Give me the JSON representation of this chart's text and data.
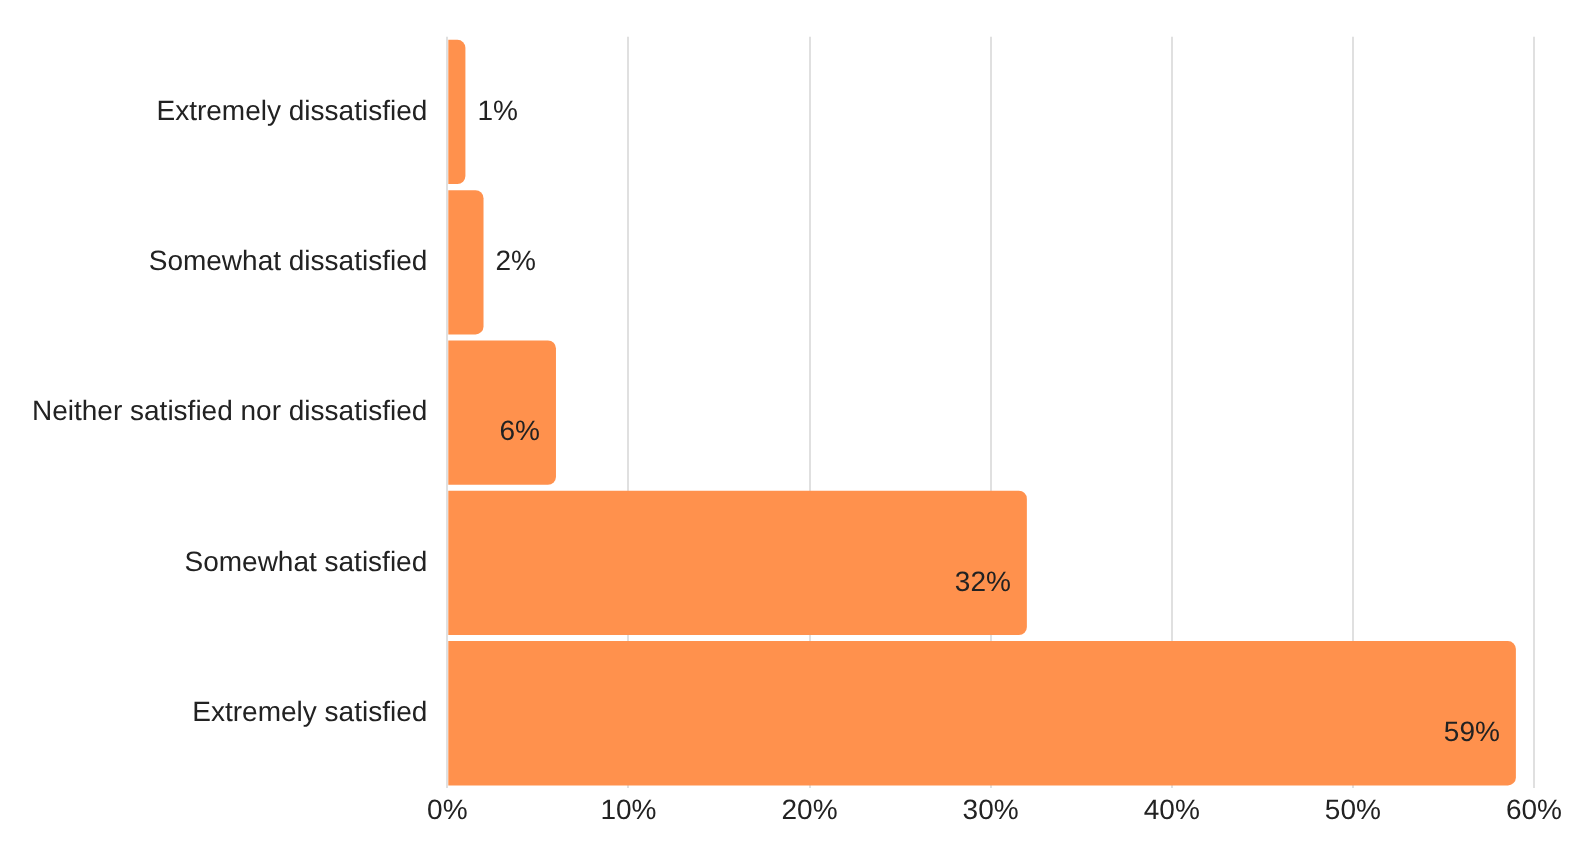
{
  "chart_data": {
    "type": "bar",
    "orientation": "horizontal",
    "categories": [
      "Extremely dissatisfied",
      "Somewhat dissatisfied",
      "Neither satisfied nor dissatisfied",
      "Somewhat satisfied",
      "Extremely satisfied"
    ],
    "values": [
      1,
      2,
      6,
      32,
      59
    ],
    "value_labels": [
      "1%",
      "2%",
      "6%",
      "32%",
      "59%"
    ],
    "color": "#ff914d",
    "xlim": [
      0,
      60
    ],
    "xticks": [
      {
        "value": 0,
        "label": "0%"
      },
      {
        "value": 10,
        "label": "10%"
      },
      {
        "value": 20,
        "label": "20%"
      },
      {
        "value": 30,
        "label": "30%"
      },
      {
        "value": 40,
        "label": "40%"
      },
      {
        "value": 50,
        "label": "50%"
      },
      {
        "value": 60,
        "label": "60%"
      }
    ],
    "grid": "x",
    "legend": false
  }
}
